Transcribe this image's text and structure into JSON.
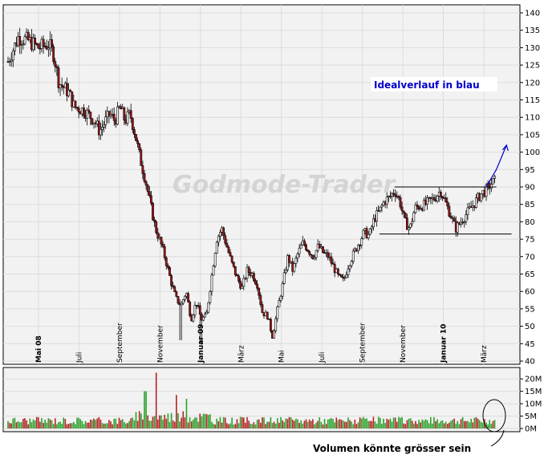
{
  "chart_data": [
    {
      "type": "candlestick",
      "ylim": [
        40,
        140
      ],
      "y_ticks": [
        40,
        45,
        50,
        55,
        60,
        65,
        70,
        75,
        80,
        85,
        90,
        95,
        100,
        105,
        110,
        115,
        120,
        125,
        130,
        135,
        140
      ],
      "x_labels": [
        {
          "label": "Mai 08",
          "bold": true
        },
        {
          "label": "Juli",
          "bold": false
        },
        {
          "label": "September",
          "bold": false
        },
        {
          "label": "November",
          "bold": false
        },
        {
          "label": "Januar 09",
          "bold": true
        },
        {
          "label": "März",
          "bold": false
        },
        {
          "label": "Mai",
          "bold": false
        },
        {
          "label": "Juli",
          "bold": false
        },
        {
          "label": "September",
          "bold": false
        },
        {
          "label": "November",
          "bold": false
        },
        {
          "label": "Januar 10",
          "bold": true
        },
        {
          "label": "März",
          "bold": false
        }
      ],
      "price_path": [
        [
          0,
          126
        ],
        [
          2,
          133
        ],
        [
          4,
          132
        ],
        [
          6,
          130
        ],
        [
          8,
          131
        ],
        [
          9,
          128
        ],
        [
          10,
          120
        ],
        [
          12,
          117
        ],
        [
          13,
          113
        ],
        [
          15,
          112
        ],
        [
          17,
          109
        ],
        [
          18,
          106
        ],
        [
          20,
          111
        ],
        [
          21,
          109
        ],
        [
          22,
          113
        ],
        [
          23,
          109
        ],
        [
          24,
          111
        ],
        [
          25,
          105
        ],
        [
          26,
          98
        ],
        [
          27,
          92
        ],
        [
          28,
          85
        ],
        [
          29,
          78
        ],
        [
          30,
          74
        ],
        [
          31,
          69
        ],
        [
          32,
          63
        ],
        [
          33,
          58
        ],
        [
          34,
          56
        ],
        [
          35,
          60
        ],
        [
          36,
          52
        ],
        [
          37,
          57
        ],
        [
          38,
          52
        ],
        [
          39,
          53
        ],
        [
          40,
          64
        ],
        [
          41,
          75
        ],
        [
          42,
          78
        ],
        [
          43,
          73
        ],
        [
          44,
          68
        ],
        [
          45,
          64
        ],
        [
          46,
          61
        ],
        [
          47,
          66
        ],
        [
          48,
          65
        ],
        [
          49,
          62
        ],
        [
          50,
          54
        ],
        [
          51,
          53
        ],
        [
          52,
          47
        ],
        [
          53,
          55
        ],
        [
          54,
          62
        ],
        [
          55,
          70
        ],
        [
          56,
          66
        ],
        [
          57,
          71
        ],
        [
          58,
          74
        ],
        [
          59,
          72
        ],
        [
          60,
          70
        ],
        [
          61,
          73
        ],
        [
          62,
          71
        ],
        [
          63,
          70
        ],
        [
          64,
          67
        ],
        [
          65,
          64
        ],
        [
          66,
          63
        ],
        [
          67,
          68
        ],
        [
          68,
          71
        ],
        [
          69,
          74
        ],
        [
          70,
          77
        ],
        [
          71,
          76
        ],
        [
          72,
          81
        ],
        [
          73,
          83
        ],
        [
          74,
          86
        ],
        [
          75,
          87
        ],
        [
          76,
          89
        ],
        [
          77,
          86
        ],
        [
          78,
          80
        ],
        [
          79,
          78
        ],
        [
          80,
          84
        ],
        [
          82,
          85
        ],
        [
          84,
          87
        ],
        [
          85,
          89
        ],
        [
          87,
          82
        ],
        [
          88,
          78
        ],
        [
          89,
          80
        ],
        [
          91,
          84
        ],
        [
          93,
          88
        ],
        [
          94,
          89
        ],
        [
          95,
          91
        ],
        [
          96,
          92
        ]
      ],
      "lows": [
        {
          "index": 34,
          "low": 46
        },
        {
          "index": 38,
          "low": 45
        },
        {
          "index": 52,
          "low": 47
        }
      ],
      "volume": {
        "y_ticks": [
          "0M",
          "5M",
          "10M",
          "15M",
          "20M"
        ],
        "ylim": [
          0,
          22
        ],
        "typical": 3.5,
        "spikes": [
          {
            "index": 29,
            "value": 15
          },
          {
            "index": 27,
            "value": 10
          },
          {
            "index": 33,
            "value": 9
          },
          {
            "index": 35,
            "value": 8
          }
        ]
      },
      "horizontal_lines": [
        {
          "y": 90,
          "from_index": 76,
          "to_index": 96
        },
        {
          "y": 76.5,
          "from_index": 73,
          "to_index": 99
        }
      ],
      "projection": [
        [
          94,
          90
        ],
        [
          96,
          95
        ],
        [
          98,
          102
        ]
      ],
      "annotations": {
        "ideal": "Idealverlauf in blau",
        "volume_note": "Volumen könnte grösser sein",
        "watermark": "Godmode-Trader"
      }
    }
  ]
}
